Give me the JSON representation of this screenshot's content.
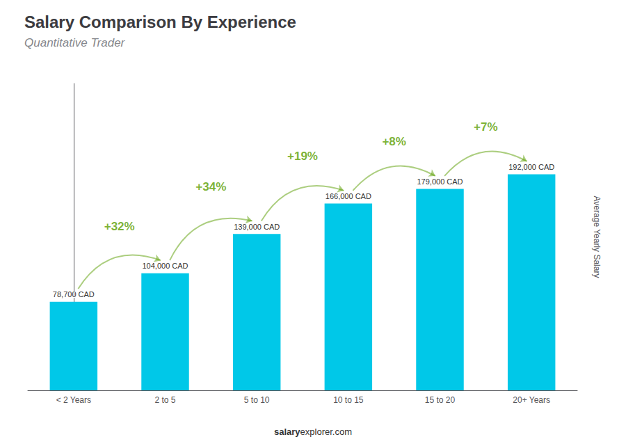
{
  "chart_data": {
    "type": "bar",
    "title": "Salary Comparison By Experience",
    "subtitle": "Quantitative Trader",
    "ylabel": "Average Yearly Salary",
    "footer": {
      "bold": "salary",
      "normal": "explorer.com"
    },
    "categories": [
      "< 2 Years",
      "2 to 5",
      "5 to 10",
      "10 to 15",
      "15 to 20",
      "20+ Years"
    ],
    "values": [
      78700,
      104000,
      139000,
      166000,
      179000,
      192000
    ],
    "value_labels": [
      "78,700 CAD",
      "104,000 CAD",
      "139,000 CAD",
      "166,000 CAD",
      "179,000 CAD",
      "192,000 CAD"
    ],
    "data_labels": true,
    "annotations": [
      {
        "text": "+32%",
        "from": "< 2 Years",
        "to": "2 to 5"
      },
      {
        "text": "+34%",
        "from": "2 to 5",
        "to": "5 to 10"
      },
      {
        "text": "+19%",
        "from": "5 to 10",
        "to": "10 to 15"
      },
      {
        "text": "+8%",
        "from": "10 to 15",
        "to": "15 to 20"
      },
      {
        "text": "+7%",
        "from": "15 to 20",
        "to": "20+ Years"
      }
    ],
    "color": "#00c8e8",
    "ylim": [
      0,
      272640
    ],
    "grid": false,
    "tick_labels": "x"
  }
}
